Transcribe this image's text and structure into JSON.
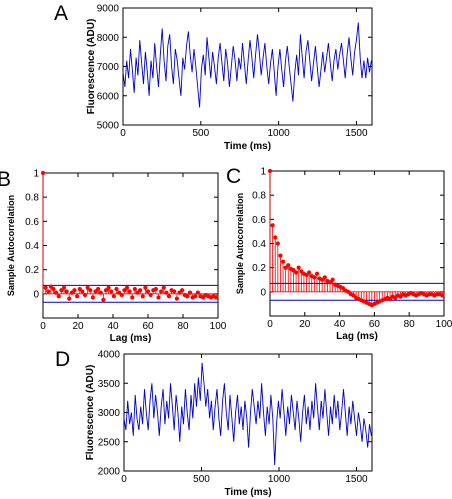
{
  "chart_data": [
    {
      "id": "A",
      "panel_label": "A",
      "type": "line",
      "xlabel": "Time (ms)",
      "ylabel": "Fluorescence (ADU)",
      "xlim": [
        0,
        1600
      ],
      "ylim": [
        5000,
        9000
      ],
      "xticks": [
        0,
        500,
        1000,
        1500
      ],
      "yticks": [
        5000,
        6000,
        7000,
        8000,
        9000
      ],
      "series": [
        {
          "color": "#0000cc",
          "x": [
            0,
            12,
            24,
            36,
            48,
            60,
            72,
            84,
            96,
            108,
            120,
            132,
            144,
            156,
            168,
            180,
            192,
            204,
            216,
            228,
            240,
            252,
            264,
            276,
            288,
            300,
            312,
            324,
            336,
            348,
            360,
            372,
            384,
            396,
            408,
            420,
            432,
            444,
            456,
            468,
            480,
            492,
            504,
            516,
            528,
            540,
            552,
            564,
            576,
            588,
            600,
            612,
            624,
            636,
            648,
            660,
            672,
            684,
            696,
            708,
            720,
            732,
            744,
            756,
            768,
            780,
            792,
            804,
            816,
            828,
            840,
            852,
            864,
            876,
            888,
            900,
            912,
            924,
            936,
            948,
            960,
            972,
            984,
            996,
            1008,
            1020,
            1032,
            1044,
            1056,
            1068,
            1080,
            1092,
            1104,
            1116,
            1128,
            1140,
            1152,
            1164,
            1176,
            1188,
            1200,
            1212,
            1224,
            1236,
            1248,
            1260,
            1272,
            1284,
            1296,
            1308,
            1320,
            1332,
            1344,
            1356,
            1368,
            1380,
            1392,
            1404,
            1416,
            1428,
            1440,
            1452,
            1464,
            1476,
            1488,
            1500,
            1512,
            1524,
            1536,
            1548,
            1560,
            1572,
            1584,
            1596
          ],
          "y": [
            6800,
            6300,
            7200,
            6600,
            7600,
            6900,
            6100,
            7300,
            6700,
            7900,
            7100,
            6400,
            7500,
            6800,
            6000,
            7200,
            6600,
            7800,
            7000,
            6300,
            7400,
            8300,
            7200,
            6500,
            7700,
            8100,
            7000,
            6400,
            7600,
            7200,
            6600,
            6000,
            7300,
            6900,
            7700,
            8200,
            7400,
            6800,
            7600,
            7000,
            6300,
            5600,
            6900,
            7400,
            6700,
            8000,
            7300,
            6600,
            7500,
            7000,
            6400,
            7300,
            7800,
            7100,
            6500,
            7600,
            7100,
            6300,
            7000,
            7700,
            7200,
            6500,
            7300,
            6900,
            7800,
            7100,
            6400,
            7200,
            7900,
            7300,
            6600,
            7400,
            8100,
            7500,
            6700,
            7300,
            7800,
            7000,
            6400,
            7100,
            7600,
            6800,
            6000,
            7000,
            7600,
            6900,
            6300,
            7200,
            7700,
            7000,
            6400,
            5800,
            6800,
            7400,
            6700,
            8100,
            7300,
            6600,
            7500,
            7900,
            7200,
            6500,
            7100,
            7700,
            7000,
            6300,
            6900,
            7500,
            6800,
            7300,
            7800,
            7100,
            6500,
            7200,
            7600,
            6900,
            7400,
            7800,
            7200,
            6600,
            7400,
            8000,
            7300,
            6700,
            7500,
            7900,
            8500,
            7300,
            6600,
            7200,
            6600,
            7300,
            6800,
            7200
          ]
        }
      ]
    },
    {
      "id": "B",
      "panel_label": "B",
      "type": "scatter",
      "xlabel": "Lag (ms)",
      "ylabel": "Sample Autocorrelation",
      "xlim": [
        0,
        100
      ],
      "ylim": [
        -0.2,
        1
      ],
      "xticks": [
        0,
        20,
        40,
        60,
        80,
        100
      ],
      "yticks": [
        0,
        0.2,
        0.4,
        0.6,
        0.8,
        1
      ],
      "confidence_bounds": [
        0.07,
        -0.07
      ],
      "series": [
        {
          "color": "#ff0000",
          "x": [
            0,
            1.5,
            3,
            4.5,
            6,
            7.5,
            9,
            10.5,
            12,
            13.5,
            15,
            16.5,
            18,
            19.5,
            21,
            22.5,
            24,
            25.5,
            27,
            28.5,
            30,
            31.5,
            33,
            34.5,
            36,
            37.5,
            39,
            40.5,
            42,
            43.5,
            45,
            46.5,
            48,
            49.5,
            51,
            52.5,
            54,
            55.5,
            57,
            58.5,
            60,
            61.5,
            63,
            64.5,
            66,
            67.5,
            69,
            70.5,
            72,
            73.5,
            75,
            76.5,
            78,
            79.5,
            81,
            82.5,
            84,
            85.5,
            87,
            88.5,
            90,
            91.5,
            93,
            94.5,
            96,
            97.5,
            99
          ],
          "y": [
            1,
            0.05,
            0.02,
            0.06,
            0.04,
            0.01,
            -0.02,
            0.03,
            0.05,
            0.02,
            -0.04,
            0.01,
            0.03,
            -0.02,
            0.04,
            0.02,
            -0.01,
            0.05,
            0.03,
            -0.03,
            0.02,
            0.04,
            0.01,
            -0.05,
            0.03,
            0.05,
            0.02,
            -0.02,
            0.04,
            0.01,
            -0.01,
            0.03,
            0.05,
            0.02,
            -0.03,
            0.04,
            0.01,
            0.03,
            -0.02,
            0.05,
            0.02,
            -0.01,
            0.03,
            0.04,
            -0.03,
            0.02,
            0.05,
            0.01,
            -0.02,
            0.03,
            0.02,
            -0.04,
            0.01,
            0.03,
            -0.01,
            -0.02,
            0.01,
            -0.03,
            -0.02,
            0.01,
            -0.02,
            -0.03,
            -0.01,
            -0.02,
            -0.03,
            -0.02,
            -0.03
          ]
        }
      ]
    },
    {
      "id": "C",
      "panel_label": "C",
      "type": "scatter",
      "xlabel": "Lag (ms)",
      "ylabel": "Sample Autocorrelation",
      "xlim": [
        0,
        100
      ],
      "ylim": [
        -0.2,
        1
      ],
      "xticks": [
        0,
        20,
        40,
        60,
        80,
        100
      ],
      "yticks": [
        0,
        0.2,
        0.4,
        0.6,
        0.8,
        1
      ],
      "confidence_bounds": [
        0.07,
        -0.07
      ],
      "series": [
        {
          "color": "#ff0000",
          "x": [
            0,
            1.5,
            3,
            4.5,
            6,
            7.5,
            9,
            10.5,
            12,
            13.5,
            15,
            16.5,
            18,
            19.5,
            21,
            22.5,
            24,
            25.5,
            27,
            28.5,
            30,
            31.5,
            33,
            34.5,
            36,
            37.5,
            39,
            40.5,
            42,
            43.5,
            45,
            46.5,
            48,
            49.5,
            51,
            52.5,
            54,
            55.5,
            57,
            58.5,
            60,
            61.5,
            63,
            64.5,
            66,
            67.5,
            69,
            70.5,
            72,
            73.5,
            75,
            76.5,
            78,
            79.5,
            81,
            82.5,
            84,
            85.5,
            87,
            88.5,
            90,
            91.5,
            93,
            94.5,
            96,
            97.5,
            99
          ],
          "y": [
            1,
            0.55,
            0.45,
            0.4,
            0.3,
            0.25,
            0.2,
            0.22,
            0.19,
            0.18,
            0.16,
            0.2,
            0.17,
            0.15,
            0.14,
            0.16,
            0.13,
            0.12,
            0.15,
            0.11,
            0.1,
            0.12,
            0.09,
            0.08,
            0.1,
            0.06,
            0.05,
            0.04,
            0.03,
            0.01,
            0.0,
            -0.02,
            -0.03,
            -0.05,
            -0.06,
            -0.07,
            -0.08,
            -0.09,
            -0.1,
            -0.11,
            -0.1,
            -0.09,
            -0.08,
            -0.07,
            -0.06,
            -0.05,
            -0.06,
            -0.04,
            -0.05,
            -0.03,
            -0.04,
            -0.02,
            -0.03,
            -0.02,
            -0.01,
            -0.02,
            -0.03,
            -0.02,
            -0.01,
            -0.02,
            -0.03,
            -0.02,
            -0.02,
            -0.03,
            -0.02,
            -0.02,
            -0.03
          ]
        }
      ]
    },
    {
      "id": "D",
      "panel_label": "D",
      "type": "line",
      "xlabel": "Time (ms)",
      "ylabel": "Fluorescence (ADU)",
      "xlim": [
        0,
        1600
      ],
      "ylim": [
        2000,
        4000
      ],
      "xticks": [
        0,
        500,
        1000,
        1500
      ],
      "yticks": [
        2000,
        2500,
        3000,
        3500,
        4000
      ],
      "series": [
        {
          "color": "#0000cc",
          "x": [
            0,
            12,
            24,
            36,
            48,
            60,
            72,
            84,
            96,
            108,
            120,
            132,
            144,
            156,
            168,
            180,
            192,
            204,
            216,
            228,
            240,
            252,
            264,
            276,
            288,
            300,
            312,
            324,
            336,
            348,
            360,
            372,
            384,
            396,
            408,
            420,
            432,
            444,
            456,
            468,
            480,
            492,
            504,
            516,
            528,
            540,
            552,
            564,
            576,
            588,
            600,
            612,
            624,
            636,
            648,
            660,
            672,
            684,
            696,
            708,
            720,
            732,
            744,
            756,
            768,
            780,
            792,
            804,
            816,
            828,
            840,
            852,
            864,
            876,
            888,
            900,
            912,
            924,
            936,
            948,
            960,
            972,
            984,
            996,
            1008,
            1020,
            1032,
            1044,
            1056,
            1068,
            1080,
            1092,
            1104,
            1116,
            1128,
            1140,
            1152,
            1164,
            1176,
            1188,
            1200,
            1212,
            1224,
            1236,
            1248,
            1260,
            1272,
            1284,
            1296,
            1308,
            1320,
            1332,
            1344,
            1356,
            1368,
            1380,
            1392,
            1404,
            1416,
            1428,
            1440,
            1452,
            1464,
            1476,
            1488,
            1500,
            1512,
            1524,
            1536,
            1548,
            1560,
            1572,
            1584,
            1596
          ],
          "y": [
            2900,
            2700,
            3200,
            2800,
            3000,
            2600,
            3300,
            2900,
            2700,
            3100,
            2800,
            3400,
            3000,
            2700,
            3200,
            3500,
            2900,
            3300,
            3000,
            2600,
            3100,
            3400,
            2800,
            3200,
            2900,
            3500,
            3100,
            2700,
            3300,
            3000,
            2500,
            3100,
            2800,
            3400,
            3000,
            2700,
            3300,
            2900,
            3500,
            3100,
            3600,
            3200,
            3850,
            3500,
            3100,
            3400,
            2900,
            3200,
            2700,
            3100,
            3400,
            2900,
            2600,
            3200,
            3500,
            3000,
            2700,
            3300,
            2900,
            2500,
            3000,
            3300,
            2800,
            3100,
            2700,
            3200,
            2900,
            2400,
            3000,
            3400,
            3100,
            2800,
            3200,
            2900,
            3500,
            3000,
            2600,
            3100,
            2800,
            3300,
            2900,
            2100,
            2800,
            3200,
            2900,
            3400,
            3000,
            2600,
            3100,
            2800,
            3300,
            3000,
            2700,
            3200,
            2900,
            2500,
            3000,
            3300,
            2800,
            3100,
            2700,
            3200,
            2900,
            3500,
            3100,
            2700,
            3200,
            2900,
            3400,
            3000,
            2600,
            3100,
            2800,
            3300,
            2900,
            3200,
            2700,
            3000,
            3400,
            3000,
            2600,
            3100,
            2800,
            3200,
            2900,
            2600,
            3000,
            2800,
            2500,
            2900,
            2700,
            2400,
            2800,
            2600
          ]
        }
      ]
    }
  ]
}
